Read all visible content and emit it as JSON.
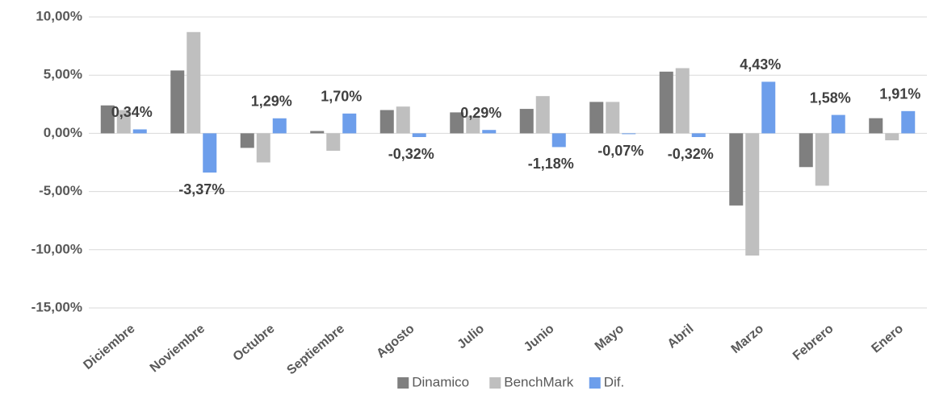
{
  "chart_data": {
    "type": "bar",
    "categories": [
      "Diciembre",
      "Noviembre",
      "Octubre",
      "Septiembre",
      "Agosto",
      "Julio",
      "Junio",
      "Mayo",
      "Abril",
      "Marzo",
      "Febrero",
      "Enero"
    ],
    "series": [
      {
        "name": "Dinamico",
        "color": "#7f7f7f",
        "values": [
          2.4,
          5.4,
          -1.25,
          0.2,
          2.0,
          1.8,
          2.1,
          2.7,
          5.3,
          -6.2,
          -2.9,
          1.3
        ]
      },
      {
        "name": "BenchMark",
        "color": "#bfbfbf",
        "values": [
          2.0,
          8.7,
          -2.5,
          -1.5,
          2.3,
          1.5,
          3.2,
          2.7,
          5.6,
          -10.5,
          -4.5,
          -0.6
        ]
      },
      {
        "name": "Dif.",
        "color": "#6d9eeb",
        "values": [
          0.34,
          -3.37,
          1.29,
          1.7,
          -0.32,
          0.29,
          -1.18,
          -0.07,
          -0.32,
          4.43,
          1.58,
          1.91
        ],
        "value_labels": [
          "0,34%",
          "-3,37%",
          "1,29%",
          "1,70%",
          "-0,32%",
          "0,29%",
          "-1,18%",
          "-0,07%",
          "-0,32%",
          "4,43%",
          "1,58%",
          "1,91%"
        ]
      }
    ],
    "ylim": [
      -15,
      10
    ],
    "yticks": [
      {
        "value": -15,
        "label": "-15,00%"
      },
      {
        "value": -10,
        "label": "-10,00%"
      },
      {
        "value": -5,
        "label": "-5,00%"
      },
      {
        "value": 0,
        "label": "0,00%"
      },
      {
        "value": 5,
        "label": "5,00%"
      },
      {
        "value": 10,
        "label": "10,00%"
      }
    ],
    "grid": true,
    "legend": "bottom"
  }
}
